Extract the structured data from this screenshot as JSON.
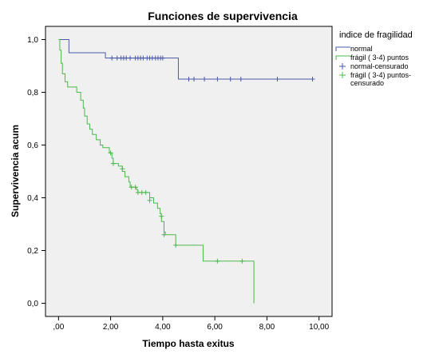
{
  "chart_data": {
    "type": "line",
    "subtype": "kaplan-meier-step",
    "title": "Funciones de supervivencia",
    "xlabel": "Tiempo hasta exitus",
    "ylabel": "Supervivencia acum",
    "xlim": [
      -0.5,
      10.5
    ],
    "ylim": [
      -0.05,
      1.05
    ],
    "xticks": [
      0,
      2,
      4,
      6,
      8,
      10
    ],
    "xtick_labels": [
      ",00",
      "2,00",
      "4,00",
      "6,00",
      "8,00",
      "10,00"
    ],
    "yticks": [
      0,
      0.2,
      0.4,
      0.6,
      0.8,
      1.0
    ],
    "ytick_labels": [
      "0,0",
      "0,2",
      "0,4",
      "0,6",
      "0,8",
      "1,0"
    ],
    "grid": false,
    "legend": {
      "title": "indice de fragilidad",
      "position": "right",
      "entries": [
        "normal",
        "frágil ( 3-4) puntos",
        "normal-censurado",
        "frágil ( 3-4) puntos-censurado"
      ]
    },
    "series": [
      {
        "name": "normal",
        "color": "#4a5aa8",
        "steps": [
          [
            0.0,
            1.0
          ],
          [
            0.4,
            0.95
          ],
          [
            1.8,
            0.93
          ],
          [
            4.6,
            0.85
          ],
          [
            9.8,
            0.85
          ]
        ],
        "censored": [
          [
            2.05,
            0.93
          ],
          [
            2.25,
            0.93
          ],
          [
            2.4,
            0.93
          ],
          [
            2.5,
            0.93
          ],
          [
            2.6,
            0.93
          ],
          [
            2.75,
            0.93
          ],
          [
            2.95,
            0.93
          ],
          [
            3.05,
            0.93
          ],
          [
            3.15,
            0.93
          ],
          [
            3.25,
            0.93
          ],
          [
            3.4,
            0.93
          ],
          [
            3.5,
            0.93
          ],
          [
            3.6,
            0.93
          ],
          [
            3.72,
            0.93
          ],
          [
            3.82,
            0.93
          ],
          [
            3.92,
            0.93
          ],
          [
            4.0,
            0.93
          ],
          [
            5.0,
            0.85
          ],
          [
            5.2,
            0.85
          ],
          [
            5.6,
            0.85
          ],
          [
            6.1,
            0.85
          ],
          [
            6.6,
            0.85
          ],
          [
            7.0,
            0.85
          ],
          [
            8.4,
            0.85
          ],
          [
            9.75,
            0.85
          ]
        ]
      },
      {
        "name": "frágil ( 3-4) puntos",
        "color": "#4cb84c",
        "steps": [
          [
            0.0,
            1.0
          ],
          [
            0.05,
            0.96
          ],
          [
            0.1,
            0.91
          ],
          [
            0.15,
            0.87
          ],
          [
            0.25,
            0.84
          ],
          [
            0.35,
            0.82
          ],
          [
            0.7,
            0.8
          ],
          [
            0.85,
            0.77
          ],
          [
            0.95,
            0.74
          ],
          [
            1.0,
            0.71
          ],
          [
            1.1,
            0.68
          ],
          [
            1.2,
            0.66
          ],
          [
            1.3,
            0.64
          ],
          [
            1.45,
            0.62
          ],
          [
            1.6,
            0.6
          ],
          [
            1.7,
            0.59
          ],
          [
            1.95,
            0.57
          ],
          [
            2.05,
            0.55
          ],
          [
            2.1,
            0.53
          ],
          [
            2.3,
            0.52
          ],
          [
            2.45,
            0.5
          ],
          [
            2.55,
            0.48
          ],
          [
            2.7,
            0.46
          ],
          [
            2.75,
            0.44
          ],
          [
            3.0,
            0.43
          ],
          [
            3.05,
            0.42
          ],
          [
            3.5,
            0.4
          ],
          [
            3.65,
            0.38
          ],
          [
            3.8,
            0.36
          ],
          [
            3.9,
            0.34
          ],
          [
            3.95,
            0.31
          ],
          [
            4.05,
            0.27
          ],
          [
            4.1,
            0.26
          ],
          [
            4.5,
            0.22
          ],
          [
            5.55,
            0.16
          ],
          [
            7.5,
            0.0
          ]
        ],
        "end_x": 7.5,
        "censored": [
          [
            2.0,
            0.57
          ],
          [
            2.1,
            0.53
          ],
          [
            2.45,
            0.51
          ],
          [
            2.8,
            0.44
          ],
          [
            2.95,
            0.44
          ],
          [
            3.05,
            0.42
          ],
          [
            3.2,
            0.42
          ],
          [
            3.35,
            0.42
          ],
          [
            3.5,
            0.39
          ],
          [
            3.95,
            0.33
          ],
          [
            4.05,
            0.26
          ],
          [
            4.5,
            0.22
          ],
          [
            6.1,
            0.16
          ],
          [
            7.05,
            0.16
          ]
        ]
      }
    ]
  }
}
